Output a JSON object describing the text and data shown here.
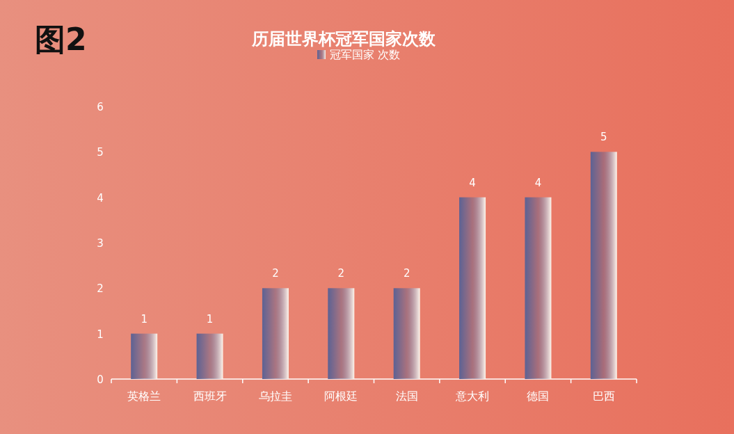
{
  "chart_data": {
    "type": "bar",
    "title": "历届世界杯冠军国家次数",
    "annotations": [
      "图2"
    ],
    "categories": [
      "英格兰",
      "西班牙",
      "乌拉圭",
      "阿根廷",
      "法国",
      "意大利",
      "德国",
      "巴西"
    ],
    "series": [
      {
        "name": "冠军国家 次数",
        "color": "#5c6294",
        "values": [
          1,
          1,
          2,
          2,
          2,
          4,
          4,
          5
        ]
      }
    ],
    "ylim": [
      0,
      6
    ],
    "yticks": [
      0,
      1,
      2,
      3,
      4,
      5,
      6
    ],
    "grid": false,
    "legend": "top",
    "data_labels": true
  }
}
